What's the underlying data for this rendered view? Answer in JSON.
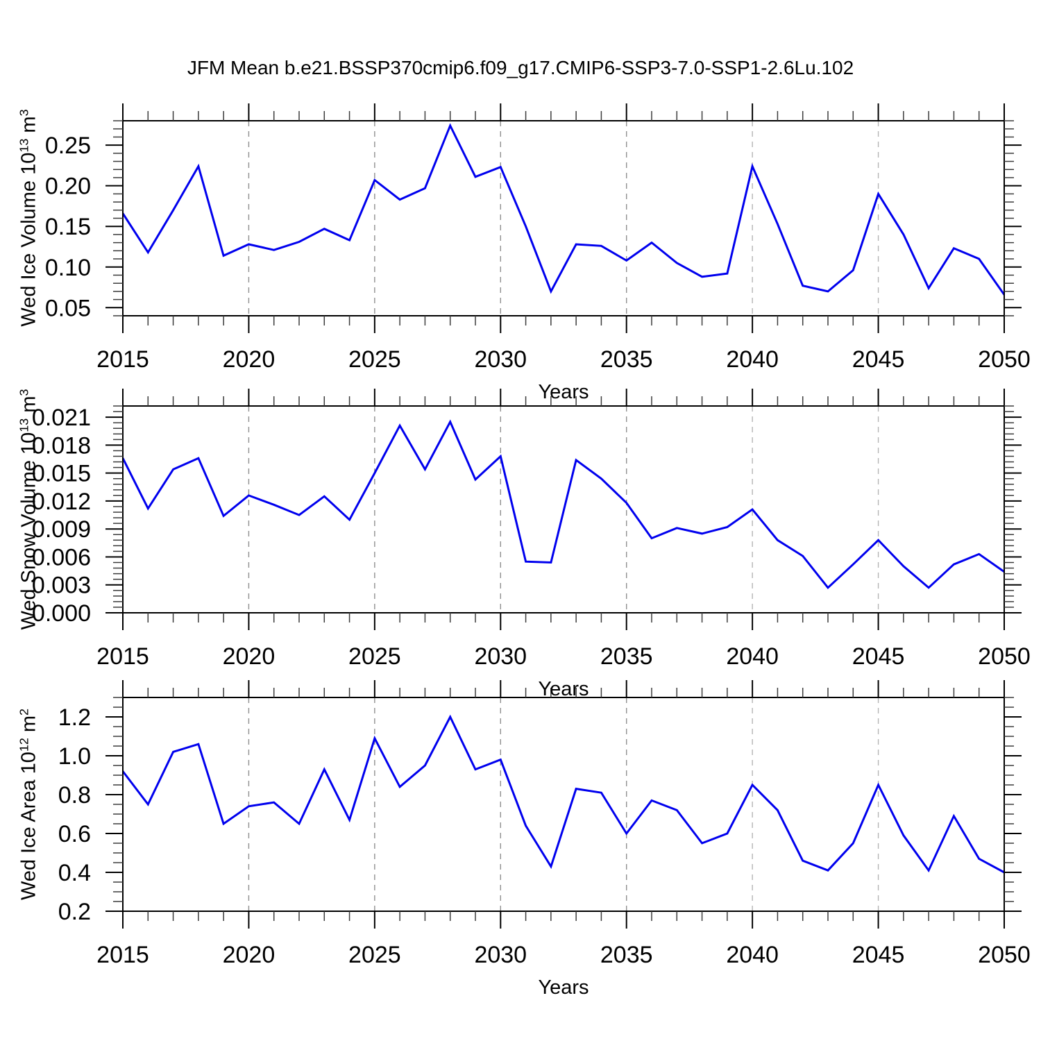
{
  "title": "JFM Mean b.e21.BSSP370cmip6.f09_g17.CMIP6-SSP3-7.0-SSP1-2.6Lu.102",
  "line_color": "#0000EE",
  "years": [
    2015,
    2016,
    2017,
    2018,
    2019,
    2020,
    2021,
    2022,
    2023,
    2024,
    2025,
    2026,
    2027,
    2028,
    2029,
    2030,
    2031,
    2032,
    2033,
    2034,
    2035,
    2036,
    2037,
    2038,
    2039,
    2040,
    2041,
    2042,
    2043,
    2044,
    2045,
    2046,
    2047,
    2048,
    2049,
    2050
  ],
  "xtick_values": [
    2015,
    2020,
    2025,
    2030,
    2035,
    2040,
    2045,
    2050
  ],
  "xtick_labels": [
    "2015",
    "2020",
    "2025",
    "2030",
    "2035",
    "2040",
    "2045",
    "2050"
  ],
  "grid_years": [
    2020,
    2025,
    2030,
    2035,
    2040,
    2045
  ],
  "chart_data": [
    {
      "type": "line",
      "name": "wed-ice-volume",
      "ylabel": {
        "prefix": "Wed Ice Volume 10",
        "sup1": "13",
        "mid": " m",
        "sup2": "3"
      },
      "xlabel": "Years",
      "ylim": [
        0.04,
        0.28
      ],
      "ytick_values": [
        0.05,
        0.1,
        0.15,
        0.2,
        0.25
      ],
      "ytick_labels": [
        "0.05",
        "0.10",
        "0.15",
        "0.20",
        "0.25"
      ],
      "y_minor_step": 0.01,
      "grid": "dashed-vertical",
      "values": [
        0.166,
        0.118,
        0.17,
        0.224,
        0.114,
        0.128,
        0.121,
        0.131,
        0.147,
        0.133,
        0.207,
        0.183,
        0.197,
        0.274,
        0.211,
        0.223,
        0.15,
        0.07,
        0.128,
        0.126,
        0.108,
        0.13,
        0.105,
        0.088,
        0.092,
        0.224,
        0.153,
        0.077,
        0.07,
        0.096,
        0.19,
        0.14,
        0.074,
        0.123,
        0.11,
        0.066
      ]
    },
    {
      "type": "line",
      "name": "wed-snow-volume",
      "ylabel": {
        "prefix": "Wed Snow Volume 10",
        "sup1": "13",
        "mid": " m",
        "sup2": "3"
      },
      "xlabel": "Years",
      "ylim": [
        0.0,
        0.0222
      ],
      "ytick_values": [
        0.0,
        0.003,
        0.006,
        0.009,
        0.012,
        0.015,
        0.018,
        0.021
      ],
      "ytick_labels": [
        "0.000",
        "0.003",
        "0.006",
        "0.009",
        "0.012",
        "0.015",
        "0.018",
        "0.021"
      ],
      "y_minor_step": 0.0006,
      "grid": "dashed-vertical",
      "values": [
        0.0166,
        0.0112,
        0.0154,
        0.0166,
        0.0104,
        0.0126,
        0.0116,
        0.0105,
        0.0125,
        0.01,
        0.015,
        0.0201,
        0.0154,
        0.0205,
        0.0143,
        0.0168,
        0.0055,
        0.0054,
        0.0164,
        0.0144,
        0.0118,
        0.008,
        0.0091,
        0.0085,
        0.0092,
        0.0111,
        0.0078,
        0.0061,
        0.0027,
        0.0052,
        0.0078,
        0.005,
        0.0027,
        0.0052,
        0.0063,
        0.0044
      ]
    },
    {
      "type": "line",
      "name": "wed-ice-area",
      "ylabel": {
        "prefix": "Wed Ice Area 10",
        "sup1": "12",
        "mid": " m",
        "sup2": "2"
      },
      "xlabel": "Years",
      "ylim": [
        0.2,
        1.3
      ],
      "ytick_values": [
        0.2,
        0.4,
        0.6,
        0.8,
        1.0,
        1.2
      ],
      "ytick_labels": [
        "0.2",
        "0.4",
        "0.6",
        "0.8",
        "1.0",
        "1.2"
      ],
      "y_minor_step": 0.05,
      "grid": "dashed-vertical",
      "values": [
        0.92,
        0.75,
        1.02,
        1.06,
        0.65,
        0.74,
        0.76,
        0.65,
        0.93,
        0.67,
        1.09,
        0.84,
        0.95,
        1.2,
        0.93,
        0.98,
        0.64,
        0.43,
        0.83,
        0.81,
        0.6,
        0.77,
        0.72,
        0.55,
        0.6,
        0.85,
        0.72,
        0.46,
        0.41,
        0.55,
        0.85,
        0.59,
        0.41,
        0.69,
        0.47,
        0.4
      ]
    }
  ]
}
